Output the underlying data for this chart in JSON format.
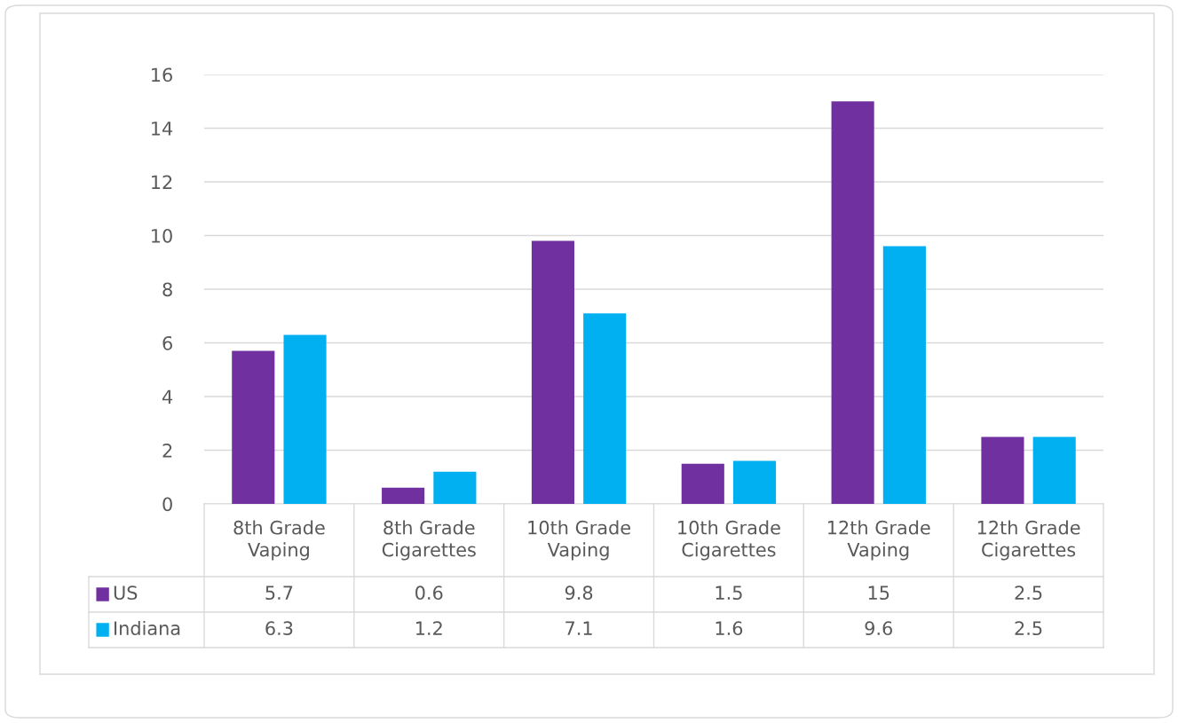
{
  "chart_data": {
    "type": "bar",
    "categories": [
      "8th Grade\nVaping",
      "8th Grade\nCigarettes",
      "10th Grade\nVaping",
      "10th Grade\nCigarettes",
      "12th Grade\nVaping",
      "12th Grade\nCigarettes"
    ],
    "series": [
      {
        "name": "US",
        "color": "#7030a0",
        "values": [
          5.7,
          0.6,
          9.8,
          1.5,
          15,
          2.5
        ]
      },
      {
        "name": "Indiana",
        "color": "#00b0f0",
        "values": [
          6.3,
          1.2,
          7.1,
          1.6,
          9.6,
          2.5
        ]
      }
    ],
    "ylim": [
      0,
      16
    ],
    "yticks": [
      0,
      2,
      4,
      6,
      8,
      10,
      12,
      14,
      16
    ],
    "grid": "y",
    "data_labels": true,
    "legend": "bottom"
  }
}
